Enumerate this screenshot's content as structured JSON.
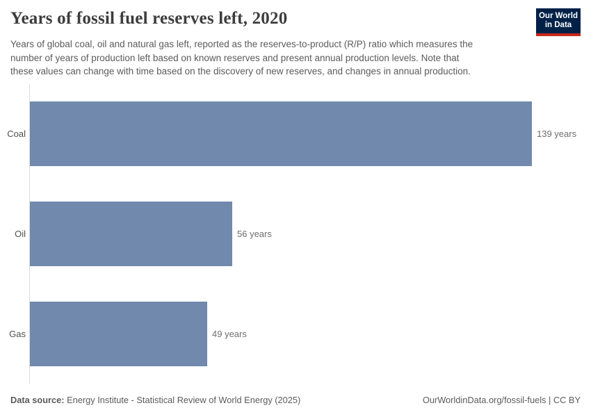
{
  "header": {
    "title": "Years of fossil fuel reserves left, 2020",
    "subtitle_lines": [
      "Years of global coal, oil and natural gas left, reported as the reserves-to-product (R/P) ratio which measures the",
      "number of years of production left based on known reserves and present annual production levels. Note that",
      "these values can change with time based on the discovery of new reserves, and changes in annual production."
    ],
    "logo": {
      "line1": "Our World",
      "line2": "in Data"
    }
  },
  "chart_data": {
    "type": "bar",
    "orientation": "horizontal",
    "title": "Years of fossil fuel reserves left, 2020",
    "categories": [
      "Coal",
      "Oil",
      "Gas"
    ],
    "values": [
      139,
      56,
      49
    ],
    "value_labels": [
      "139 years",
      "56 years",
      "49 years"
    ],
    "unit": "years",
    "xlim": [
      0,
      139
    ],
    "grid": false,
    "legend": "none",
    "bar_color": "#7089ad"
  },
  "footer": {
    "source_label": "Data source:",
    "source_text": " Energy Institute - Statistical Review of World Energy (2025)",
    "link_text": "OurWorldinData.org/fossil-fuels",
    "separator": " | ",
    "license_text": "CC BY"
  },
  "colors": {
    "bar": "#7089ad",
    "axis_line": "#dcdcdc",
    "title_text": "#3d3d3d",
    "body_text": "#5b5b5b",
    "value_text": "#6e6e6e",
    "logo_background": "#002147",
    "logo_stripe": "#c9281e"
  }
}
